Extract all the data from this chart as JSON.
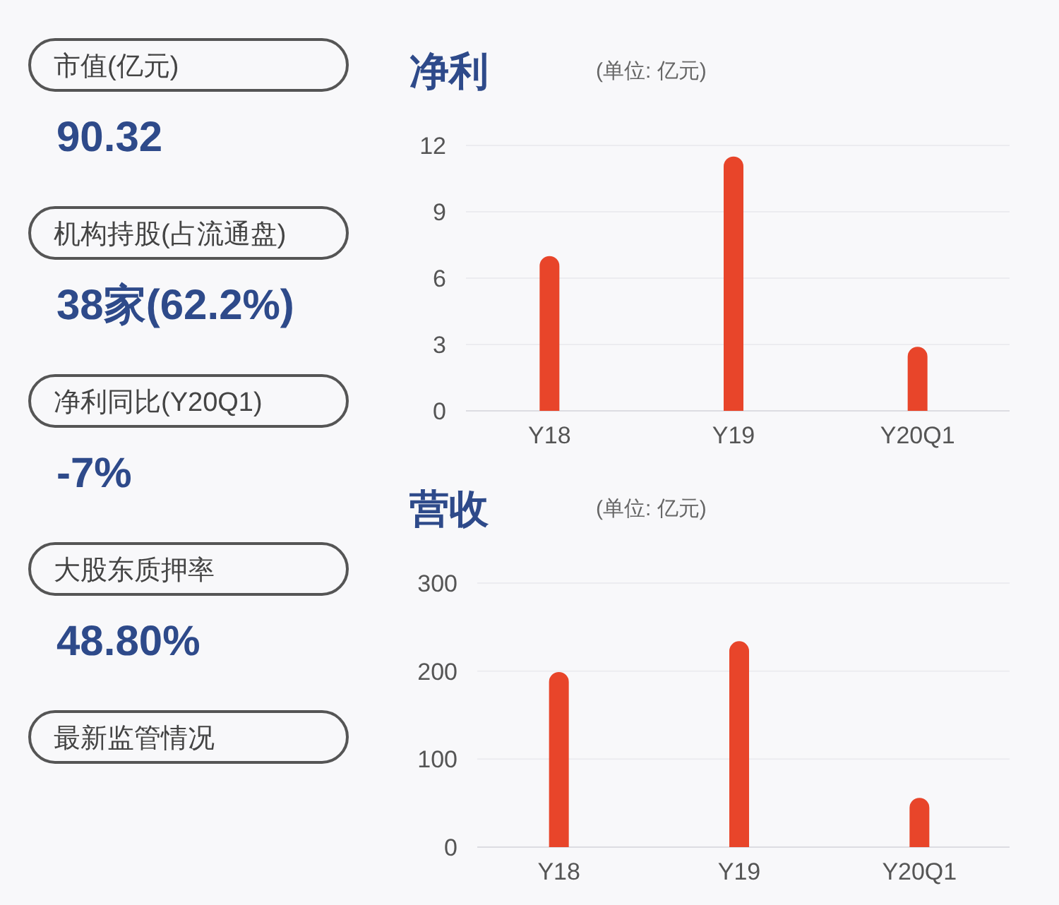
{
  "chart_data": [
    {
      "type": "other",
      "annotations": [
        "市值(亿元)",
        "90.32",
        "机构持股(占流通盘)",
        "38家(62.2%)",
        "净利同比(Y20Q1)",
        "-7%",
        "大股东质押率",
        "48.80%",
        "最新监管情况"
      ]
    },
    {
      "type": "bar",
      "title": "净利",
      "subtitle": "(单位: 亿元)",
      "categories": [
        "Y18",
        "Y19",
        "Y20Q1"
      ],
      "values": [
        7.0,
        11.5,
        2.9
      ],
      "color": "#e8452a",
      "ylim": [
        0,
        12
      ],
      "yticks": [
        0,
        3,
        6,
        9,
        12
      ],
      "grid": "y"
    },
    {
      "type": "bar",
      "title": "营收",
      "subtitle": "(单位: 亿元)",
      "categories": [
        "Y18",
        "Y19",
        "Y20Q1"
      ],
      "values": [
        199,
        234,
        56
      ],
      "color": "#e8452a",
      "ylim": [
        0,
        300
      ],
      "yticks": [
        0,
        100,
        200,
        300
      ],
      "grid": "y"
    }
  ]
}
